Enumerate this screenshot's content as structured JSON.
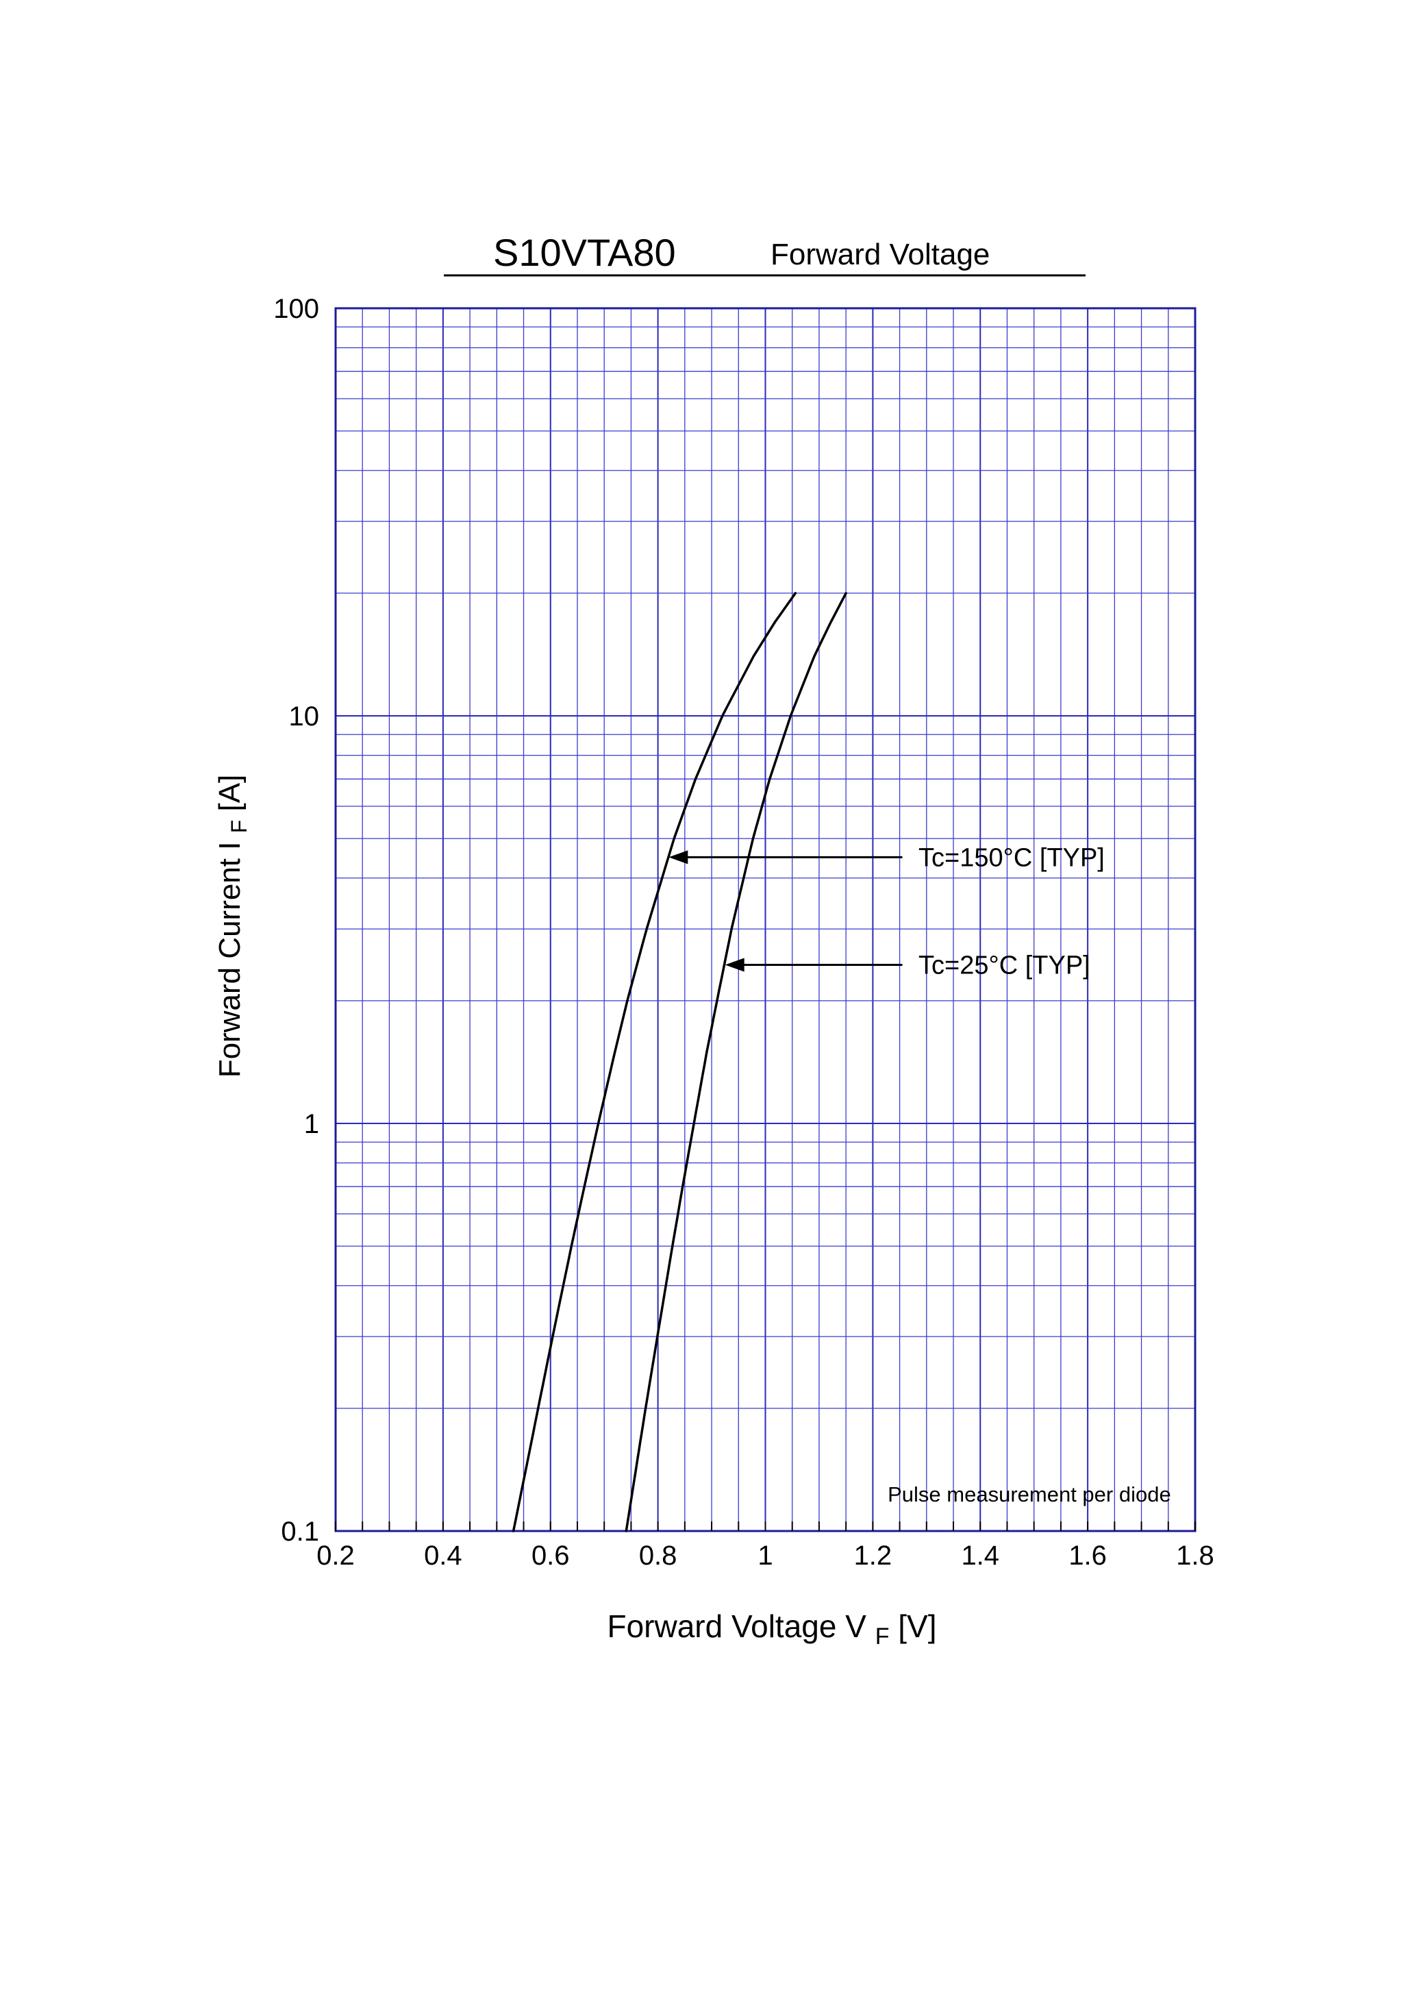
{
  "title": {
    "part1": "S10VTA80",
    "part2": "Forward  Voltage"
  },
  "axis": {
    "y_label_prefix": "Forward Current  I",
    "y_label_sub": "F",
    "y_label_suffix": " [A]",
    "x_label_prefix": "Forward Voltage  V",
    "x_label_sub": "F",
    "x_label_suffix": " [V]"
  },
  "chart_data": {
    "type": "line",
    "title": "S10VTA80 Forward Voltage",
    "xlabel": "Forward Voltage VF [V]",
    "ylabel": "Forward Current IF [A]",
    "x_scale": "linear",
    "y_scale": "log",
    "xlim": [
      0.2,
      1.8
    ],
    "ylim": [
      0.1,
      100
    ],
    "x_ticks": [
      0.2,
      0.4,
      0.6,
      0.8,
      1,
      1.2,
      1.4,
      1.6,
      1.8
    ],
    "x_tick_labels": [
      "0.2",
      "0.4",
      "0.6",
      "0.8",
      "1",
      "1.2",
      "1.4",
      "1.6",
      "1.8"
    ],
    "y_ticks": [
      0.1,
      1,
      10,
      100
    ],
    "y_tick_labels": [
      "0.1",
      "1",
      "10",
      "100"
    ],
    "x_minor_step": 0.05,
    "grid": true,
    "grid_minor_color": "#3b3bcf",
    "grid_major_color": "#2a2ab8",
    "frame_color": "#1c1c9c",
    "curve_color": "#000000",
    "series": [
      {
        "name": "Tc=150°C [TYP]",
        "color": "#000000",
        "points": [
          [
            0.531,
            0.1
          ],
          [
            0.558,
            0.15
          ],
          [
            0.577,
            0.2
          ],
          [
            0.604,
            0.3
          ],
          [
            0.639,
            0.5
          ],
          [
            0.663,
            0.7
          ],
          [
            0.689,
            1.0
          ],
          [
            0.72,
            1.5
          ],
          [
            0.743,
            2.0
          ],
          [
            0.779,
            3.0
          ],
          [
            0.83,
            5.0
          ],
          [
            0.87,
            7.0
          ],
          [
            0.92,
            10.0
          ],
          [
            0.978,
            14.0
          ],
          [
            1.018,
            17.0
          ],
          [
            1.056,
            20.0
          ]
        ]
      },
      {
        "name": "Tc=25°C [TYP]",
        "color": "#000000",
        "points": [
          [
            0.741,
            0.1
          ],
          [
            0.762,
            0.15
          ],
          [
            0.777,
            0.2
          ],
          [
            0.799,
            0.3
          ],
          [
            0.827,
            0.5
          ],
          [
            0.846,
            0.7
          ],
          [
            0.867,
            1.0
          ],
          [
            0.891,
            1.5
          ],
          [
            0.91,
            2.0
          ],
          [
            0.937,
            3.0
          ],
          [
            0.977,
            5.0
          ],
          [
            1.008,
            7.0
          ],
          [
            1.047,
            10.0
          ],
          [
            1.091,
            14.0
          ],
          [
            1.122,
            17.0
          ],
          [
            1.15,
            20.0
          ]
        ]
      }
    ],
    "annotations": [
      {
        "label": "Tc=150°C [TYP]",
        "tip": [
          0.82,
          4.5
        ],
        "tail": [
          1.255,
          4.5
        ],
        "label_pos": [
          1.285,
          4.5
        ]
      },
      {
        "label": "Tc=25°C [TYP]",
        "tip": [
          0.925,
          2.45
        ],
        "tail": [
          1.255,
          2.45
        ],
        "label_pos": [
          1.285,
          2.45
        ]
      },
      {
        "label": "Pulse  measurement  per  diode",
        "pos": [
          1.755,
          0.118
        ],
        "align": "end"
      }
    ],
    "legend_position": "none"
  }
}
